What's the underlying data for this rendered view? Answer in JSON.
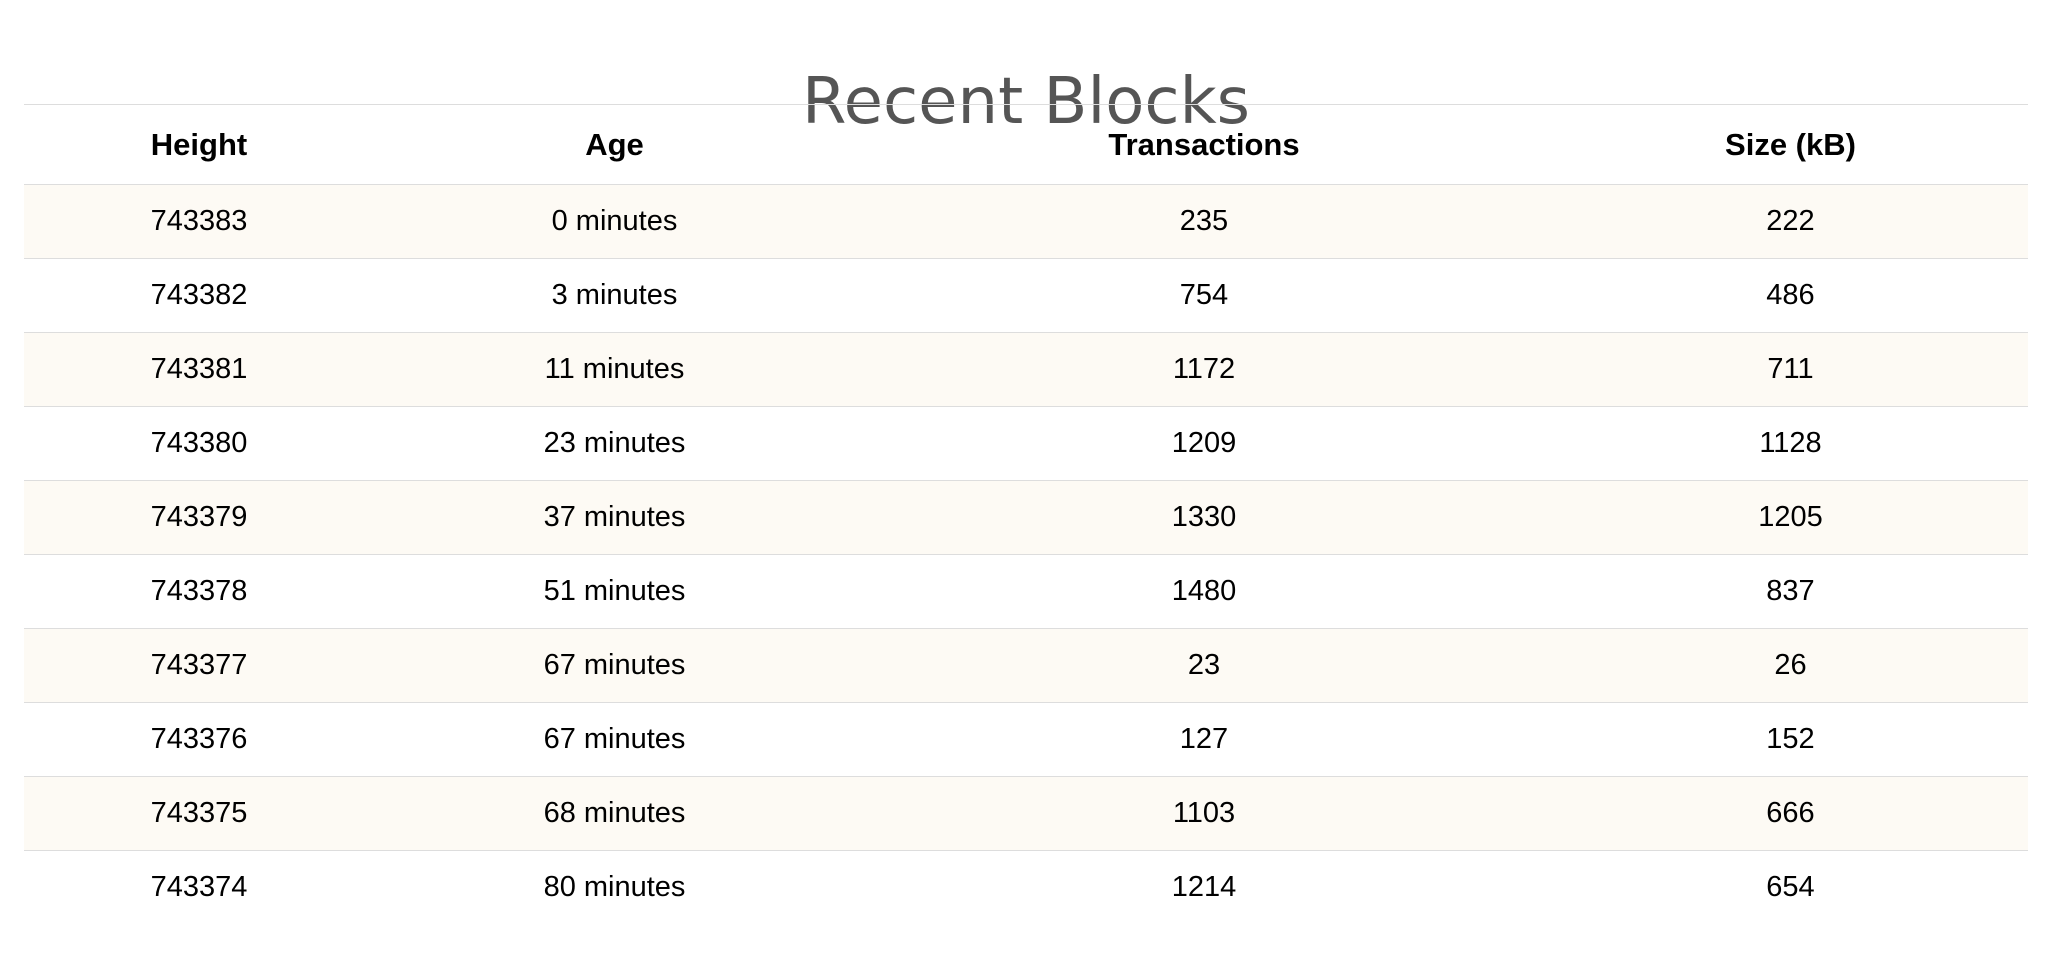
{
  "page": {
    "title": "Recent Blocks"
  },
  "table": {
    "columns": [
      "Height",
      "Age",
      "Transactions",
      "Size (kB)"
    ],
    "rows": [
      {
        "height": "743383",
        "age": "0 minutes",
        "transactions": "235",
        "size": "222"
      },
      {
        "height": "743382",
        "age": "3 minutes",
        "transactions": "754",
        "size": "486"
      },
      {
        "height": "743381",
        "age": "11 minutes",
        "transactions": "1172",
        "size": "711"
      },
      {
        "height": "743380",
        "age": "23 minutes",
        "transactions": "1209",
        "size": "1128"
      },
      {
        "height": "743379",
        "age": "37 minutes",
        "transactions": "1330",
        "size": "1205"
      },
      {
        "height": "743378",
        "age": "51 minutes",
        "transactions": "1480",
        "size": "837"
      },
      {
        "height": "743377",
        "age": "67 minutes",
        "transactions": "23",
        "size": "26"
      },
      {
        "height": "743376",
        "age": "67 minutes",
        "transactions": "127",
        "size": "152"
      },
      {
        "height": "743375",
        "age": "68 minutes",
        "transactions": "1103",
        "size": "666"
      },
      {
        "height": "743374",
        "age": "80 minutes",
        "transactions": "1214",
        "size": "654"
      }
    ]
  },
  "colors": {
    "title": "#555555",
    "row_stripe": "#fdfaf4",
    "border": "#dddddd"
  }
}
